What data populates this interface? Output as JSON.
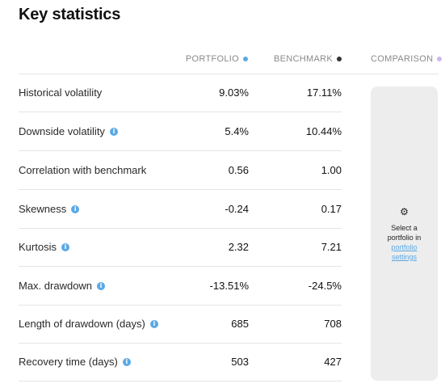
{
  "title": "Key statistics",
  "columns": {
    "portfolio": {
      "label": "PORTFOLIO",
      "color": "#5aa9e6"
    },
    "benchmark": {
      "label": "BENCHMARK",
      "color": "#333333"
    },
    "comparison": {
      "label": "COMPARISON",
      "color": "#cbb8ec"
    }
  },
  "rows": [
    {
      "label": "Historical volatility",
      "info": false,
      "portfolio": "9.03%",
      "benchmark": "17.11%"
    },
    {
      "label": "Downside volatility",
      "info": true,
      "portfolio": "5.4%",
      "benchmark": "10.44%"
    },
    {
      "label": "Correlation with benchmark",
      "info": false,
      "portfolio": "0.56",
      "benchmark": "1.00"
    },
    {
      "label": "Skewness",
      "info": true,
      "portfolio": "-0.24",
      "benchmark": "0.17"
    },
    {
      "label": "Kurtosis",
      "info": true,
      "portfolio": "2.32",
      "benchmark": "7.21"
    },
    {
      "label": "Max. drawdown",
      "info": true,
      "portfolio": "-13.51%",
      "benchmark": "-24.5%"
    },
    {
      "label": "Length of drawdown (days)",
      "info": true,
      "portfolio": "685",
      "benchmark": "708"
    },
    {
      "label": "Recovery time (days)",
      "info": true,
      "portfolio": "503",
      "benchmark": "427"
    }
  ],
  "comparison_panel": {
    "icon": "gear-icon",
    "line1": "Select a",
    "line2": "portfolio in",
    "link_line1": "portfolio",
    "link_line2": "settings"
  }
}
